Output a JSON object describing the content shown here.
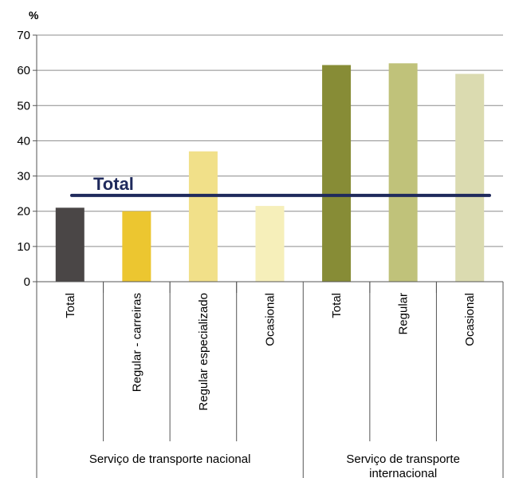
{
  "chart_data": {
    "type": "bar",
    "ylabel": "%",
    "ylim": [
      0,
      70
    ],
    "yticks": [
      "0",
      "10",
      "20",
      "30",
      "40",
      "50",
      "60",
      "70"
    ],
    "grid": true,
    "categories": [
      "Total",
      "Regular - carreiras",
      "Regular especializado",
      "Ocasional",
      "Total",
      "Regular",
      "Ocasional"
    ],
    "groups": [
      {
        "label": "Serviço de transporte nacional",
        "span": [
          0,
          3
        ]
      },
      {
        "label": "Serviço de transporte internacional",
        "span": [
          4,
          6
        ]
      }
    ],
    "values": [
      21,
      20,
      37,
      21.5,
      61.5,
      62,
      59
    ],
    "colors": [
      "#4a4646",
      "#ecc630",
      "#f1e089",
      "#f6efba",
      "#878c36",
      "#c0c27a",
      "#dbdbb0"
    ],
    "reference_line": {
      "label": "Total",
      "value": 24.5,
      "color": "#1f2a5c"
    }
  }
}
